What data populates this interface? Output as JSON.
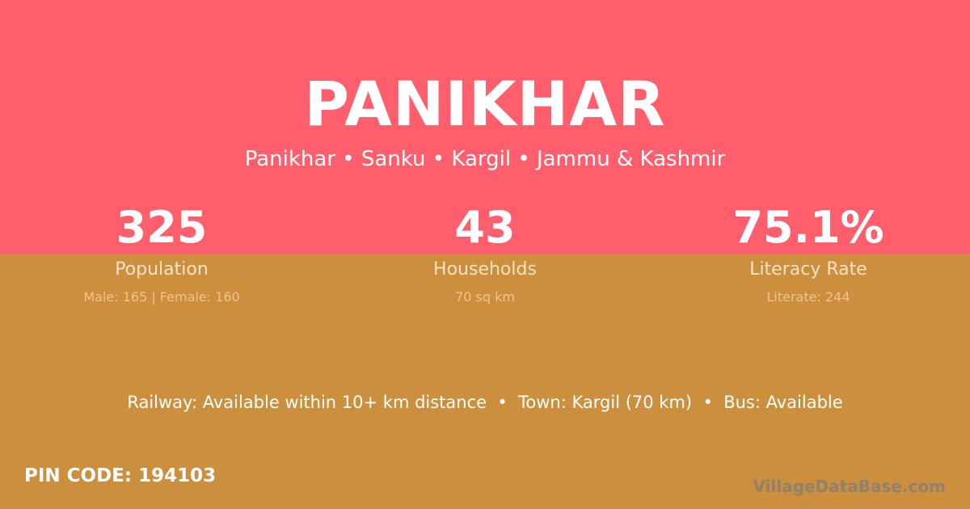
{
  "village": {
    "name": "PANIKHAR",
    "breadcrumb": "Panikhar • Sanku • Kargil • Jammu & Kashmir"
  },
  "stats": [
    {
      "value": "325",
      "label": "Population",
      "detail": "Male: 165 | Female: 160"
    },
    {
      "value": "43",
      "label": "Households",
      "detail": "70 sq km"
    },
    {
      "value": "75.1%",
      "label": "Literacy Rate",
      "detail": "Literate: 244"
    }
  ],
  "connectivity": "Railway: Available within 10+ km distance  •  Town: Kargil (70 km)  •  Bus: Available",
  "pin": "PIN CODE: 194103",
  "brand": "VillageDataBase.com",
  "colors": {
    "top": "#ff5e6c",
    "bottom": "#cc8f3e"
  }
}
